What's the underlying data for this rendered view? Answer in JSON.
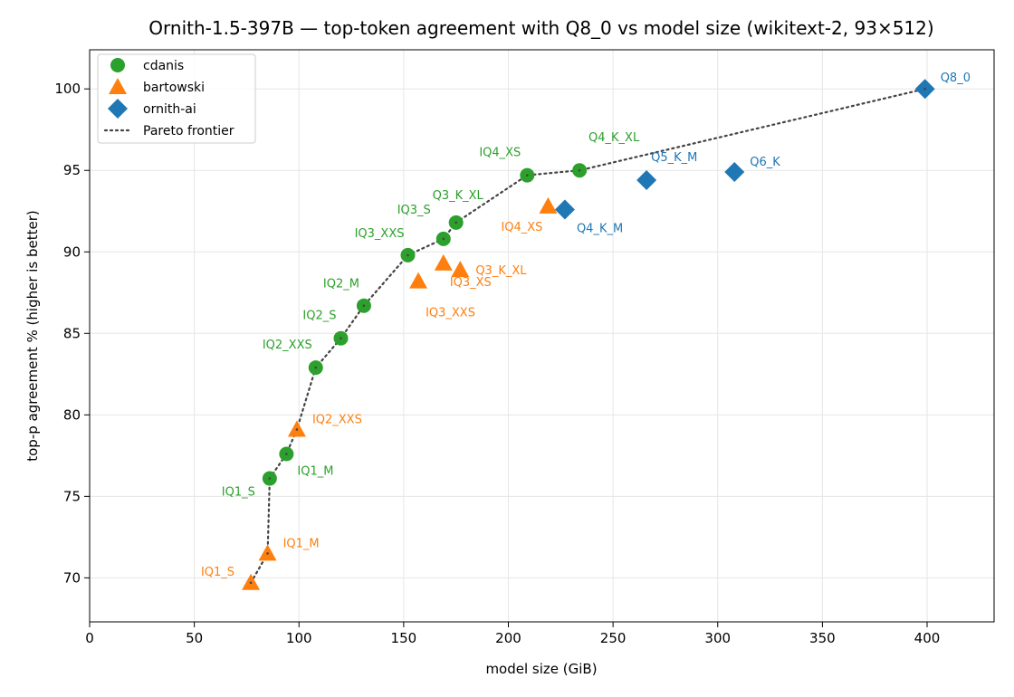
{
  "chart_data": {
    "type": "scatter",
    "title": "Ornith-1.5-397B — top-token agreement with Q8_0 vs model size (wikitext-2, 93×512)",
    "xlabel": "model size (GiB)",
    "ylabel": "top-p agreement % (higher is better)",
    "xlim": [
      0,
      432
    ],
    "ylim": [
      67.3,
      102.4
    ],
    "xticks": [
      0,
      50,
      100,
      150,
      200,
      250,
      300,
      350,
      400
    ],
    "yticks": [
      70,
      75,
      80,
      85,
      90,
      95,
      100
    ],
    "grid": true,
    "legend_position": "top-left",
    "colors": {
      "cdanis": "#2ca02c",
      "bartowski": "#ff7f0e",
      "ornith-ai": "#1f77b4",
      "frontier": "#444444"
    },
    "series": [
      {
        "name": "cdanis",
        "marker": "circle",
        "points": [
          {
            "label": "IQ1_S",
            "x": 86,
            "y": 76.1
          },
          {
            "label": "IQ1_M",
            "x": 94,
            "y": 77.6
          },
          {
            "label": "IQ2_XXS",
            "x": 108,
            "y": 82.9
          },
          {
            "label": "IQ2_S",
            "x": 120,
            "y": 84.7
          },
          {
            "label": "IQ2_M",
            "x": 131,
            "y": 86.7
          },
          {
            "label": "IQ3_XXS",
            "x": 152,
            "y": 89.8
          },
          {
            "label": "IQ3_S",
            "x": 169,
            "y": 90.8
          },
          {
            "label": "Q3_K_XL",
            "x": 175,
            "y": 91.8
          },
          {
            "label": "IQ4_XS",
            "x": 209,
            "y": 94.7
          },
          {
            "label": "Q4_K_XL",
            "x": 234,
            "y": 95.0
          }
        ]
      },
      {
        "name": "bartowski",
        "marker": "triangle",
        "points": [
          {
            "label": "IQ1_S",
            "x": 77,
            "y": 69.7
          },
          {
            "label": "IQ1_M",
            "x": 85,
            "y": 71.5
          },
          {
            "label": "IQ2_XXS",
            "x": 99,
            "y": 79.1
          },
          {
            "label": "IQ3_XXS",
            "x": 157,
            "y": 88.2
          },
          {
            "label": "IQ3_XS",
            "x": 169,
            "y": 89.3
          },
          {
            "label": "Q3_K_XL",
            "x": 177,
            "y": 88.9
          },
          {
            "label": "IQ4_XS",
            "x": 219,
            "y": 92.8
          }
        ]
      },
      {
        "name": "ornith-ai",
        "marker": "diamond",
        "points": [
          {
            "label": "Q4_K_M",
            "x": 227,
            "y": 92.6
          },
          {
            "label": "Q5_K_M",
            "x": 266,
            "y": 94.4
          },
          {
            "label": "Q6_K",
            "x": 308,
            "y": 94.9
          },
          {
            "label": "Q8_0",
            "x": 399,
            "y": 100.0
          }
        ]
      }
    ],
    "frontier": {
      "name": "Pareto frontier",
      "points": [
        {
          "x": 77,
          "y": 69.7
        },
        {
          "x": 85,
          "y": 71.5
        },
        {
          "x": 86,
          "y": 76.1
        },
        {
          "x": 94,
          "y": 77.6
        },
        {
          "x": 99,
          "y": 79.1
        },
        {
          "x": 108,
          "y": 82.9
        },
        {
          "x": 120,
          "y": 84.7
        },
        {
          "x": 131,
          "y": 86.7
        },
        {
          "x": 152,
          "y": 89.8
        },
        {
          "x": 169,
          "y": 90.8
        },
        {
          "x": 175,
          "y": 91.8
        },
        {
          "x": 209,
          "y": 94.7
        },
        {
          "x": 234,
          "y": 95.0
        },
        {
          "x": 399,
          "y": 100.0
        }
      ]
    }
  }
}
